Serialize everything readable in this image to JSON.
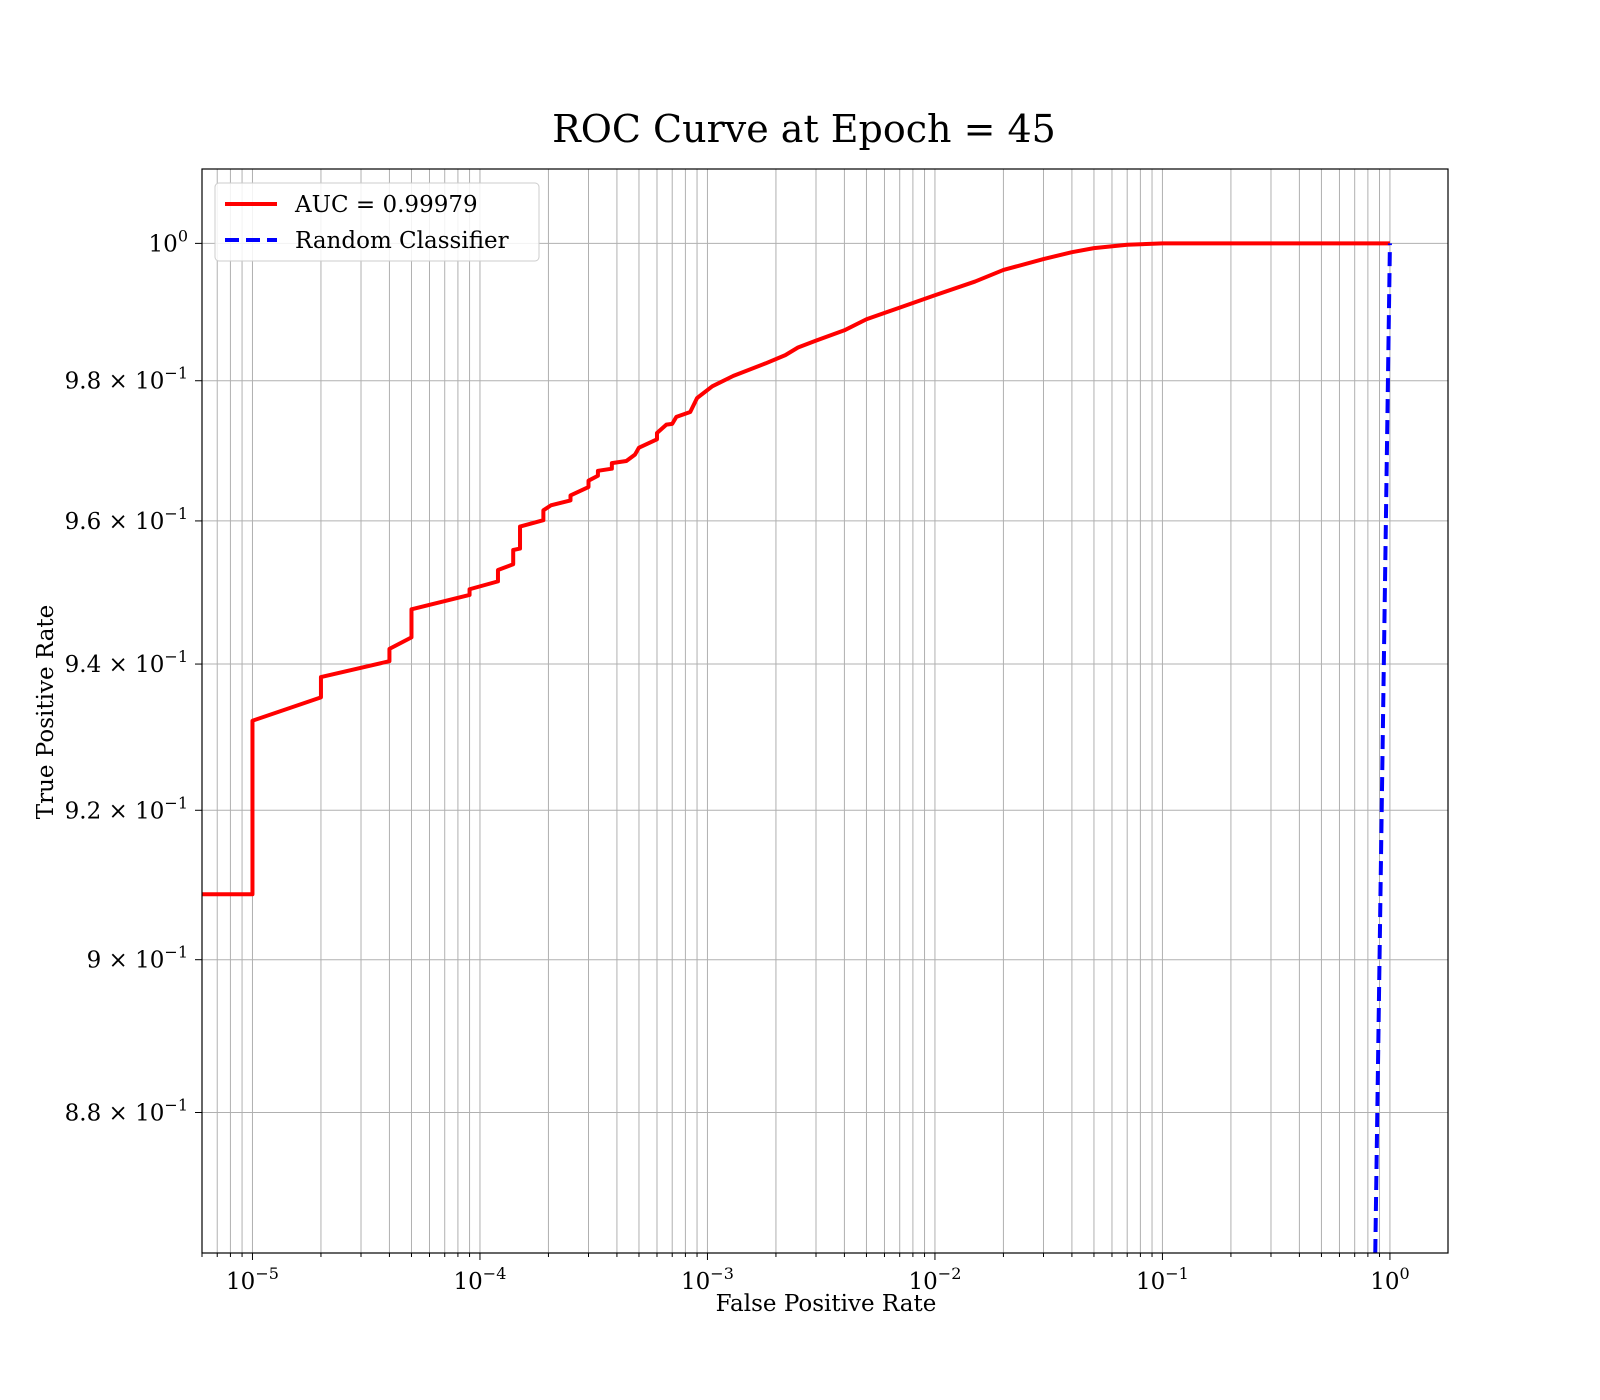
{
  "chart_data": {
    "type": "line",
    "title": "ROC Curve at Epoch = 45",
    "xlabel": "False Positive Rate",
    "ylabel": "True Positive Rate",
    "xscale": "log",
    "yscale": "log",
    "xlim": [
      6e-06,
      1.8
    ],
    "ylim": [
      0.862,
      1.011
    ],
    "grid": true,
    "grid_minor": true,
    "legend_position": "upper-left",
    "x_ticks": [
      {
        "value": 1e-05,
        "base": "10",
        "exp": "−5"
      },
      {
        "value": 0.0001,
        "base": "10",
        "exp": "−4"
      },
      {
        "value": 0.001,
        "base": "10",
        "exp": "−3"
      },
      {
        "value": 0.01,
        "base": "10",
        "exp": "−2"
      },
      {
        "value": 0.1,
        "base": "10",
        "exp": "−1"
      },
      {
        "value": 1,
        "base": "10",
        "exp": "0"
      }
    ],
    "y_ticks": [
      {
        "value": 1.0,
        "base": "10",
        "exp": "0"
      },
      {
        "value": 0.98,
        "base": "9.8 × 10",
        "exp": "−1"
      },
      {
        "value": 0.96,
        "base": "9.6 × 10",
        "exp": "−1"
      },
      {
        "value": 0.94,
        "base": "9.4 × 10",
        "exp": "−1"
      },
      {
        "value": 0.92,
        "base": "9.2 × 10",
        "exp": "−1"
      },
      {
        "value": 0.9,
        "base": "9 × 10",
        "exp": "−1"
      },
      {
        "value": 0.88,
        "base": "8.8 × 10",
        "exp": "−1"
      }
    ],
    "series": [
      {
        "name": "AUC = 0.99979",
        "color": "#ff0000",
        "style": "solid",
        "points": [
          [
            6e-06,
            0.9087
          ],
          [
            1e-05,
            0.9087
          ],
          [
            1e-05,
            0.9322
          ],
          [
            2e-05,
            0.9354
          ],
          [
            2e-05,
            0.9382
          ],
          [
            4e-05,
            0.9404
          ],
          [
            4e-05,
            0.9421
          ],
          [
            5e-05,
            0.9437
          ],
          [
            5e-05,
            0.9476
          ],
          [
            9e-05,
            0.9496
          ],
          [
            9e-05,
            0.9504
          ],
          [
            0.00012,
            0.9515
          ],
          [
            0.00012,
            0.9531
          ],
          [
            0.00014,
            0.9539
          ],
          [
            0.00014,
            0.9559
          ],
          [
            0.00015,
            0.9561
          ],
          [
            0.00015,
            0.9592
          ],
          [
            0.00019,
            0.9601
          ],
          [
            0.00019,
            0.9615
          ],
          [
            0.000205,
            0.9622
          ],
          [
            0.00025,
            0.9629
          ],
          [
            0.00025,
            0.9636
          ],
          [
            0.0003,
            0.9648
          ],
          [
            0.0003,
            0.9657
          ],
          [
            0.00033,
            0.9664
          ],
          [
            0.00033,
            0.9671
          ],
          [
            0.00038,
            0.9674
          ],
          [
            0.00038,
            0.9682
          ],
          [
            0.00044,
            0.9685
          ],
          [
            0.00048,
            0.9694
          ],
          [
            0.0005,
            0.9704
          ],
          [
            0.0006,
            0.9716
          ],
          [
            0.0006,
            0.9725
          ],
          [
            0.00066,
            0.9737
          ],
          [
            0.0007,
            0.9738
          ],
          [
            0.00073,
            0.9748
          ],
          [
            0.00084,
            0.9755
          ],
          [
            0.0009,
            0.9775
          ],
          [
            0.00105,
            0.9792
          ],
          [
            0.0013,
            0.9807
          ],
          [
            0.0018,
            0.9825
          ],
          [
            0.0022,
            0.9837
          ],
          [
            0.0025,
            0.9848
          ],
          [
            0.003,
            0.9858
          ],
          [
            0.004,
            0.9873
          ],
          [
            0.005,
            0.9889
          ],
          [
            0.007,
            0.9906
          ],
          [
            0.01,
            0.9924
          ],
          [
            0.015,
            0.9944
          ],
          [
            0.02,
            0.9961
          ],
          [
            0.03,
            0.9977
          ],
          [
            0.04,
            0.9987
          ],
          [
            0.05,
            0.9993
          ],
          [
            0.07,
            0.9998
          ],
          [
            0.1,
            1.0
          ],
          [
            1,
            1.0
          ]
        ]
      },
      {
        "name": "Random Classifier",
        "color": "#0000ff",
        "style": "dashed",
        "points": [
          [
            0.862,
            0.862
          ],
          [
            1.0,
            1.0
          ]
        ]
      }
    ]
  }
}
